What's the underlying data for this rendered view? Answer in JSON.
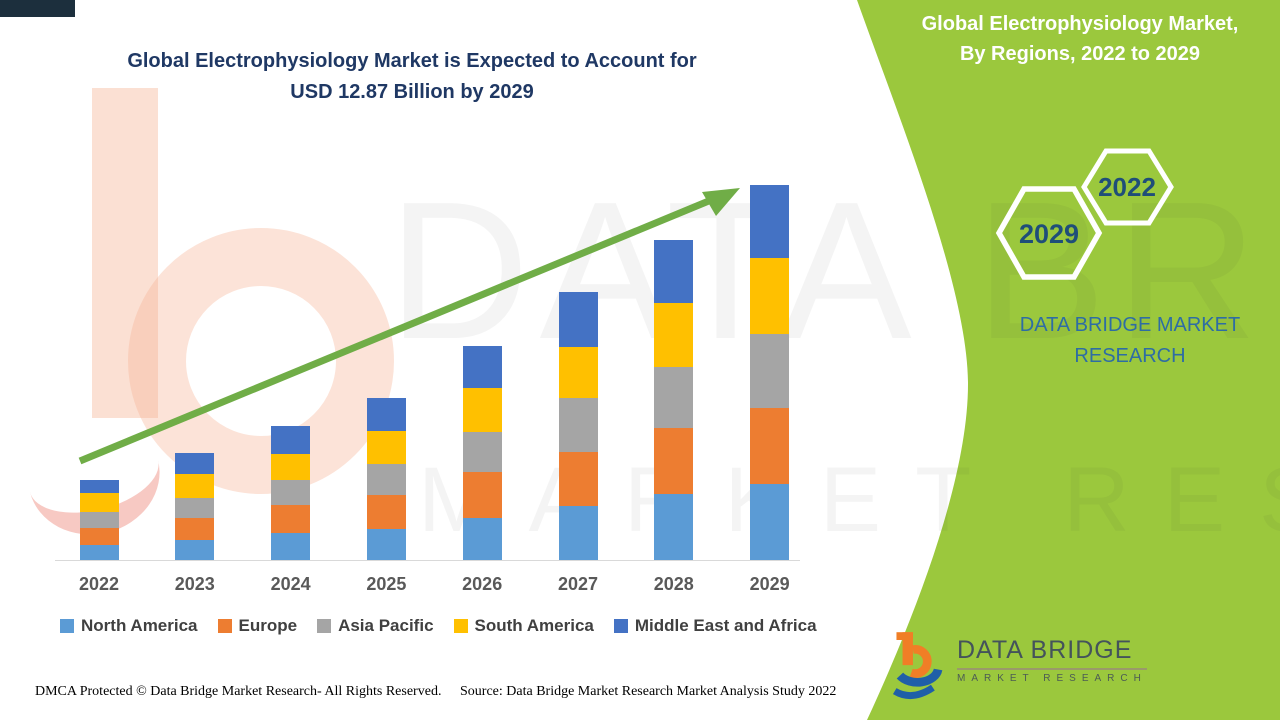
{
  "colors": {
    "panel_green": "#9BC83D",
    "title_navy": "#1F3864",
    "hex_year_blue": "#1F4E79",
    "brand_blue": "#2E6DA4",
    "axis_label_gray": "#595959",
    "legend_text": "#404040",
    "arrow_green": "#70AD47",
    "axis_line": "#D9D9D9",
    "topbar_navy": "#1C2F3D",
    "logo_orange": "#F07E26",
    "logo_blue": "#1F5FA8",
    "logo_text": "#44535B"
  },
  "main_title": {
    "line1": "Global Electrophysiology Market is Expected to Account for",
    "line2": "USD 12.87 Billion by 2029"
  },
  "side_panel": {
    "title_line1": "Global Electrophysiology Market,",
    "title_line2": "By Regions, 2022 to 2029",
    "hexagons": {
      "big_year": "2029",
      "small_year": "2022"
    },
    "brand_line1": "DATA BRIDGE MARKET",
    "brand_line2": "RESEARCH"
  },
  "watermark": {
    "line1": "DATA BRIDGE",
    "line2": "MARKET RESEARCH"
  },
  "chart_data": {
    "type": "bar",
    "stacked": true,
    "title": "Global Electrophysiology Market, By Regions, 2022 to 2029",
    "unit": "USD Billion",
    "categories": [
      "2022",
      "2023",
      "2024",
      "2025",
      "2026",
      "2027",
      "2028",
      "2029"
    ],
    "series": [
      {
        "name": "North America",
        "color": "#5B9BD5",
        "values": [
          0.51,
          0.69,
          0.93,
          1.06,
          1.44,
          1.85,
          2.27,
          2.61
        ]
      },
      {
        "name": "Europe",
        "color": "#ED7D31",
        "values": [
          0.58,
          0.76,
          0.96,
          1.17,
          1.58,
          1.85,
          2.27,
          2.61
        ]
      },
      {
        "name": "Asia Pacific",
        "color": "#A5A5A5",
        "values": [
          0.55,
          0.69,
          0.86,
          1.06,
          1.37,
          1.85,
          2.09,
          2.54
        ]
      },
      {
        "name": "South America",
        "color": "#FFC000",
        "values": [
          0.65,
          0.82,
          0.89,
          1.13,
          1.51,
          1.75,
          2.2,
          2.61
        ]
      },
      {
        "name": "Middle East and Africa",
        "color": "#4472C4",
        "values": [
          0.45,
          0.72,
          0.96,
          1.13,
          1.44,
          1.89,
          2.16,
          2.5
        ]
      }
    ],
    "totals": [
      2.74,
      3.68,
      4.6,
      5.55,
      7.34,
      9.19,
      10.99,
      12.87
    ],
    "ylim": [
      0,
      13
    ],
    "grid": false,
    "legend_position": "bottom",
    "trend_arrow": true,
    "xlabel": "",
    "ylabel": ""
  },
  "logo": {
    "title": "DATA BRIDGE",
    "subtitle": "MARKET RESEARCH"
  },
  "footer": {
    "left": "DMCA Protected © Data Bridge Market Research- All Rights Reserved.",
    "right": "Source: Data Bridge Market Research Market Analysis Study 2022"
  }
}
